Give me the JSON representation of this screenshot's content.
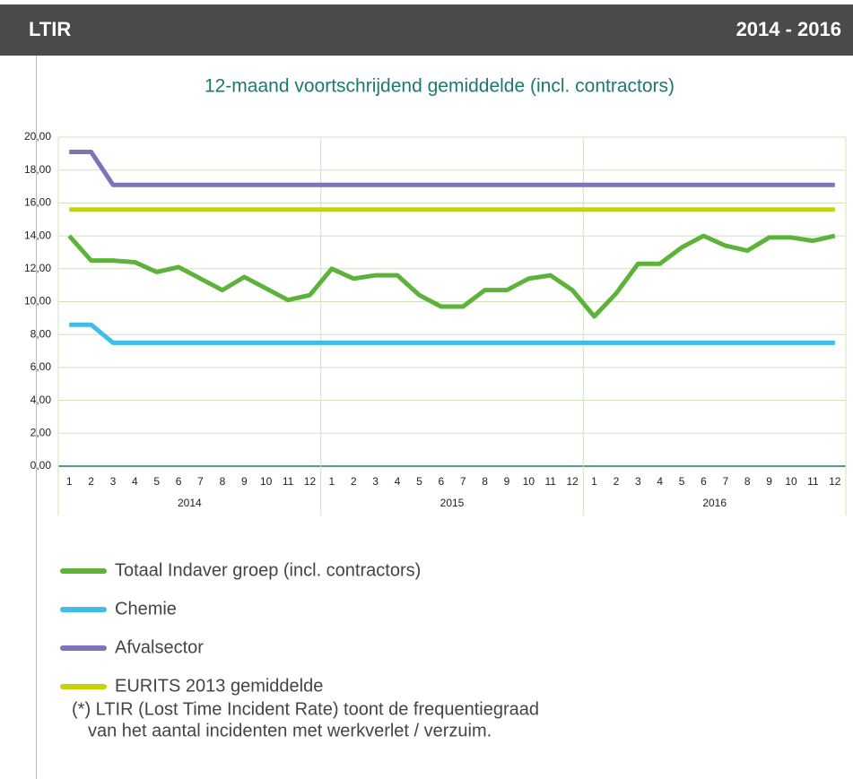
{
  "header": {
    "left": "LTIR",
    "right": "2014 - 2016"
  },
  "chart_data": {
    "type": "line",
    "title": "12-maand voortschrijdend gemiddelde (incl. contractors)",
    "categories": [
      "1",
      "2",
      "3",
      "4",
      "5",
      "6",
      "7",
      "8",
      "9",
      "10",
      "11",
      "12",
      "1",
      "2",
      "3",
      "4",
      "5",
      "6",
      "7",
      "8",
      "9",
      "10",
      "11",
      "12",
      "1",
      "2",
      "3",
      "4",
      "5",
      "6",
      "7",
      "8",
      "9",
      "10",
      "11",
      "12"
    ],
    "category_groups": [
      "2014",
      "2015",
      "2016"
    ],
    "ylim": [
      0,
      20
    ],
    "yticks": [
      {
        "value": 0,
        "label": "0,00"
      },
      {
        "value": 2,
        "label": "2,00"
      },
      {
        "value": 4,
        "label": "4,00"
      },
      {
        "value": 6,
        "label": "6,00"
      },
      {
        "value": 8,
        "label": "8,00"
      },
      {
        "value": 10,
        "label": "10,00"
      },
      {
        "value": 12,
        "label": "12,00"
      },
      {
        "value": 14,
        "label": "14,00"
      },
      {
        "value": 16,
        "label": "16,00"
      },
      {
        "value": 18,
        "label": "18,00"
      },
      {
        "value": 20,
        "label": "20,00"
      }
    ],
    "grid": true,
    "series": [
      {
        "name": "Totaal Indaver groep (incl. contractors)",
        "color": "#5db33a",
        "values": [
          14.0,
          12.5,
          12.5,
          12.4,
          11.8,
          12.1,
          11.4,
          10.7,
          11.5,
          10.8,
          10.1,
          10.4,
          12.0,
          11.4,
          11.6,
          11.6,
          10.4,
          9.7,
          9.7,
          10.7,
          10.7,
          11.4,
          11.6,
          10.7,
          9.1,
          10.5,
          12.3,
          12.3,
          13.3,
          14.0,
          13.4,
          13.1,
          13.9,
          13.9,
          13.7,
          14.0
        ]
      },
      {
        "name": "Chemie",
        "color": "#3dbde8",
        "values": [
          8.6,
          8.6,
          7.5,
          7.5,
          7.5,
          7.5,
          7.5,
          7.5,
          7.5,
          7.5,
          7.5,
          7.5,
          7.5,
          7.5,
          7.5,
          7.5,
          7.5,
          7.5,
          7.5,
          7.5,
          7.5,
          7.5,
          7.5,
          7.5,
          7.5,
          7.5,
          7.5,
          7.5,
          7.5,
          7.5,
          7.5,
          7.5,
          7.5,
          7.5,
          7.5,
          7.5
        ]
      },
      {
        "name": "Afvalsector",
        "color": "#7b74b8",
        "values": [
          19.1,
          19.1,
          17.1,
          17.1,
          17.1,
          17.1,
          17.1,
          17.1,
          17.1,
          17.1,
          17.1,
          17.1,
          17.1,
          17.1,
          17.1,
          17.1,
          17.1,
          17.1,
          17.1,
          17.1,
          17.1,
          17.1,
          17.1,
          17.1,
          17.1,
          17.1,
          17.1,
          17.1,
          17.1,
          17.1,
          17.1,
          17.1,
          17.1,
          17.1,
          17.1,
          17.1
        ]
      },
      {
        "name": "EURITS 2013 gemiddelde",
        "color": "#c8d400",
        "values": [
          15.6,
          15.6,
          15.6,
          15.6,
          15.6,
          15.6,
          15.6,
          15.6,
          15.6,
          15.6,
          15.6,
          15.6,
          15.6,
          15.6,
          15.6,
          15.6,
          15.6,
          15.6,
          15.6,
          15.6,
          15.6,
          15.6,
          15.6,
          15.6,
          15.6,
          15.6,
          15.6,
          15.6,
          15.6,
          15.6,
          15.6,
          15.6,
          15.6,
          15.6,
          15.6,
          15.6
        ]
      }
    ]
  },
  "note": [
    "(*) LTIR (Lost Time Incident Rate) toont de frequentiegraad",
    "van het aantal incidenten met werkverlet / verzuim."
  ]
}
